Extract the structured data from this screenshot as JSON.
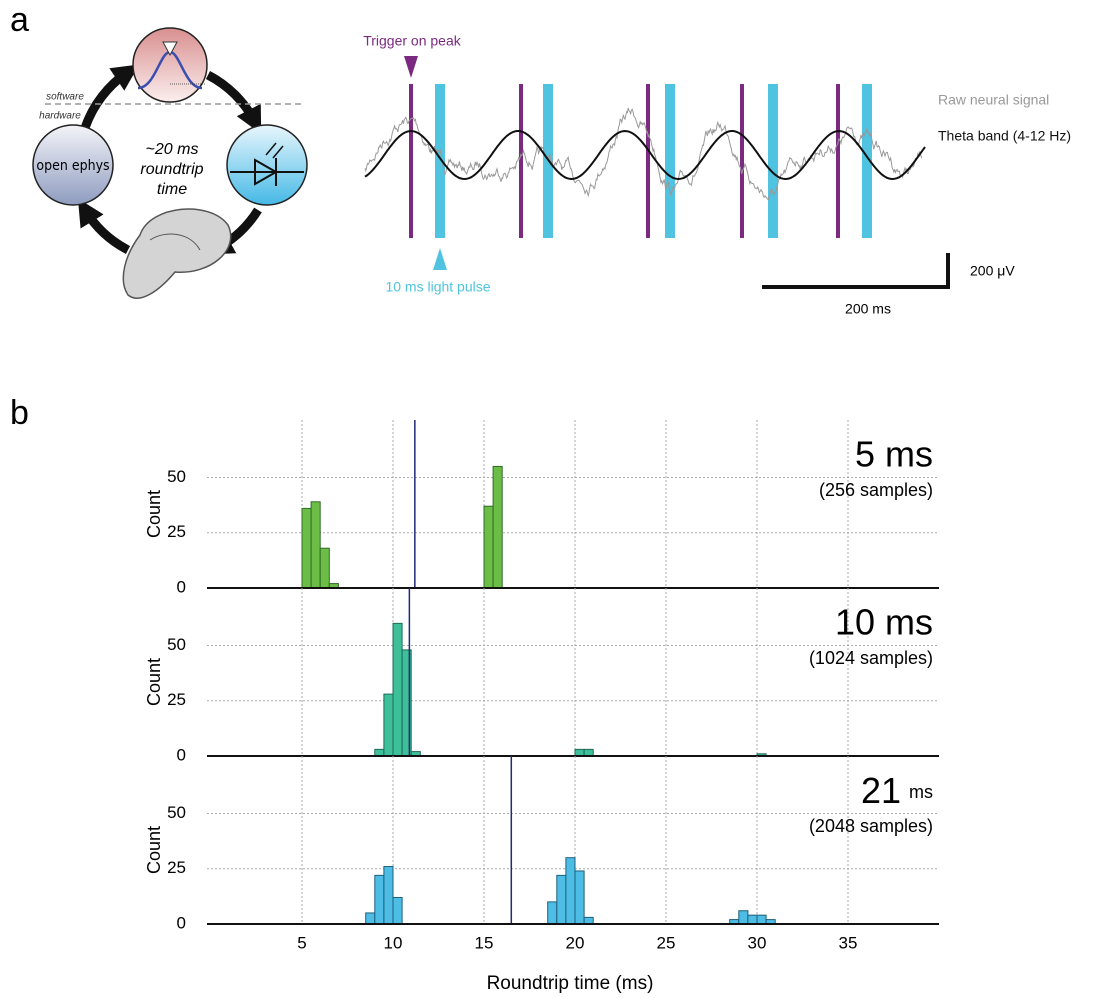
{
  "labels": {
    "panel_a": "a",
    "panel_b": "b"
  },
  "diagram": {
    "software": "software",
    "hardware": "hardware",
    "roundtrip": [
      "~20 ms",
      "roundtrip",
      "time"
    ],
    "device": "open ephys"
  },
  "trace": {
    "trigger": "Trigger on peak",
    "pulse": "10 ms light pulse",
    "raw": "Raw neural signal",
    "theta": "Theta band (4-12 Hz)",
    "scale_y": "200 μV",
    "scale_x": "200 ms"
  },
  "chart_data": [
    {
      "type": "histogram",
      "title": "5 ms",
      "subtitle": "(256 samples)",
      "ylabel": "Count",
      "bins": [
        4.5,
        5,
        5.5,
        6,
        6.5,
        7,
        7.5,
        8,
        8.5,
        9,
        9.5,
        10,
        10.5,
        11,
        11.5,
        12,
        12.5,
        13,
        13.5,
        14,
        14.5,
        15,
        15.5,
        16,
        16.5,
        17,
        17.5,
        18,
        18.5,
        19,
        19.5,
        20,
        20.5,
        21,
        21.5,
        22,
        22.5,
        23,
        23.5,
        24,
        24.5,
        25,
        25.5,
        26,
        26.5,
        27,
        27.5,
        28,
        28.5,
        29,
        29.5,
        30,
        30.5,
        31,
        31.5
      ],
      "values": [
        0,
        36,
        39,
        18,
        2,
        0,
        0,
        0,
        0,
        0,
        0,
        0,
        0,
        0,
        0,
        0,
        0,
        0,
        0,
        0,
        0,
        37,
        55,
        0,
        0,
        0,
        0,
        0,
        0,
        0,
        0,
        0,
        0,
        0,
        0,
        0,
        0,
        0,
        0,
        0,
        0,
        0,
        0,
        0,
        0,
        0,
        0,
        0,
        0,
        0,
        0,
        0,
        0,
        0
      ],
      "color": "#6cbd45",
      "edgecolor": "#2f6b2a",
      "vline": 11.2,
      "xlim": [
        0,
        40
      ],
      "ylim": [
        0,
        76
      ],
      "yticks": [
        0,
        25,
        50
      ],
      "xticks": [
        5,
        10,
        15,
        20,
        25,
        30,
        35
      ],
      "grid": true
    },
    {
      "type": "histogram",
      "title": "10 ms",
      "subtitle": "(1024 samples)",
      "ylabel": "Count",
      "bins": [
        4.5,
        5,
        5.5,
        6,
        6.5,
        7,
        7.5,
        8,
        8.5,
        9,
        9.5,
        10,
        10.5,
        11,
        11.5,
        12,
        12.5,
        13,
        13.5,
        14,
        14.5,
        15,
        15.5,
        16,
        16.5,
        17,
        17.5,
        18,
        18.5,
        19,
        19.5,
        20,
        20.5,
        21,
        21.5,
        22,
        22.5,
        23,
        23.5,
        24,
        24.5,
        25,
        25.5,
        26,
        26.5,
        27,
        27.5,
        28,
        28.5,
        29,
        29.5,
        30,
        30.5,
        31,
        31.5
      ],
      "values": [
        0,
        0,
        0,
        0,
        0,
        0,
        0,
        0,
        0,
        3,
        28,
        60,
        48,
        2,
        0,
        0,
        0,
        0,
        0,
        0,
        0,
        0,
        0,
        0,
        0,
        0,
        0,
        0,
        0,
        0,
        0,
        3,
        3,
        0,
        0,
        0,
        0,
        0,
        0,
        0,
        0,
        0,
        0,
        0,
        0,
        0,
        0,
        0,
        0,
        0,
        0,
        1,
        0,
        0
      ],
      "color": "#3dbf9a",
      "edgecolor": "#1f6b55",
      "vline": 10.9,
      "xlim": [
        0,
        40
      ],
      "ylim": [
        0,
        76
      ],
      "yticks": [
        0,
        25,
        50
      ],
      "xticks": [
        5,
        10,
        15,
        20,
        25,
        30,
        35
      ],
      "grid": true
    },
    {
      "type": "histogram",
      "title": "21",
      "title_unit": "ms",
      "subtitle": "(2048 samples)",
      "ylabel": "Count",
      "xlabel": "Roundtrip time (ms)",
      "bins": [
        4.5,
        5,
        5.5,
        6,
        6.5,
        7,
        7.5,
        8,
        8.5,
        9,
        9.5,
        10,
        10.5,
        11,
        11.5,
        12,
        12.5,
        13,
        13.5,
        14,
        14.5,
        15,
        15.5,
        16,
        16.5,
        17,
        17.5,
        18,
        18.5,
        19,
        19.5,
        20,
        20.5,
        21,
        21.5,
        22,
        22.5,
        23,
        23.5,
        24,
        24.5,
        25,
        25.5,
        26,
        26.5,
        27,
        27.5,
        28,
        28.5,
        29,
        29.5,
        30,
        30.5,
        31,
        31.5
      ],
      "values": [
        0,
        0,
        0,
        0,
        0,
        0,
        0,
        0,
        5,
        22,
        26,
        12,
        0,
        0,
        0,
        0,
        0,
        0,
        0,
        0,
        0,
        0,
        0,
        0,
        0,
        0,
        0,
        0,
        10,
        22,
        30,
        24,
        3,
        0,
        0,
        0,
        0,
        0,
        0,
        0,
        0,
        0,
        0,
        0,
        0,
        0,
        0,
        0,
        2,
        6,
        4,
        4,
        2,
        0
      ],
      "color": "#4dbde6",
      "edgecolor": "#1d5f7a",
      "vline": 16.5,
      "xlim": [
        0,
        40
      ],
      "ylim": [
        0,
        76
      ],
      "yticks": [
        0,
        25,
        50
      ],
      "xticks": [
        5,
        10,
        15,
        20,
        25,
        30,
        35
      ],
      "grid": true
    }
  ]
}
